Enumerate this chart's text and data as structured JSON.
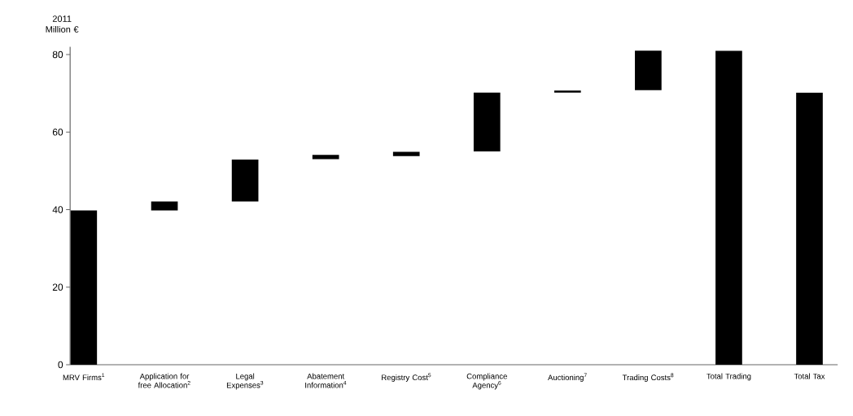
{
  "chart_data": {
    "type": "bar",
    "ylabel": "2011 Million €",
    "categories": [
      "MRV Firms$^{1}$",
      "Application for free Allocation$^{2}$",
      "Legal Expenses$^{3}$",
      "Abatement Information$^{4}$",
      "Registry Cost$^{5}$",
      "Compliance Agency$^{6}$",
      "Auctioning$^{7}$",
      "Trading Costs$^{8}$",
      "Total Trading",
      "Total Tax"
    ],
    "values": [
      39.8,
      2.3,
      10.8,
      1.1,
      1.1,
      15.2,
      0.5,
      10.2,
      81.0,
      70.2
    ],
    "base": [
      0,
      39.8,
      42.1,
      53.0,
      53.8,
      55.0,
      70.2,
      70.8,
      0,
      0
    ],
    "color": "#000000",
    "ylim": [
      0,
      82
    ],
    "yticks": [
      0,
      20,
      40,
      60,
      80
    ]
  }
}
